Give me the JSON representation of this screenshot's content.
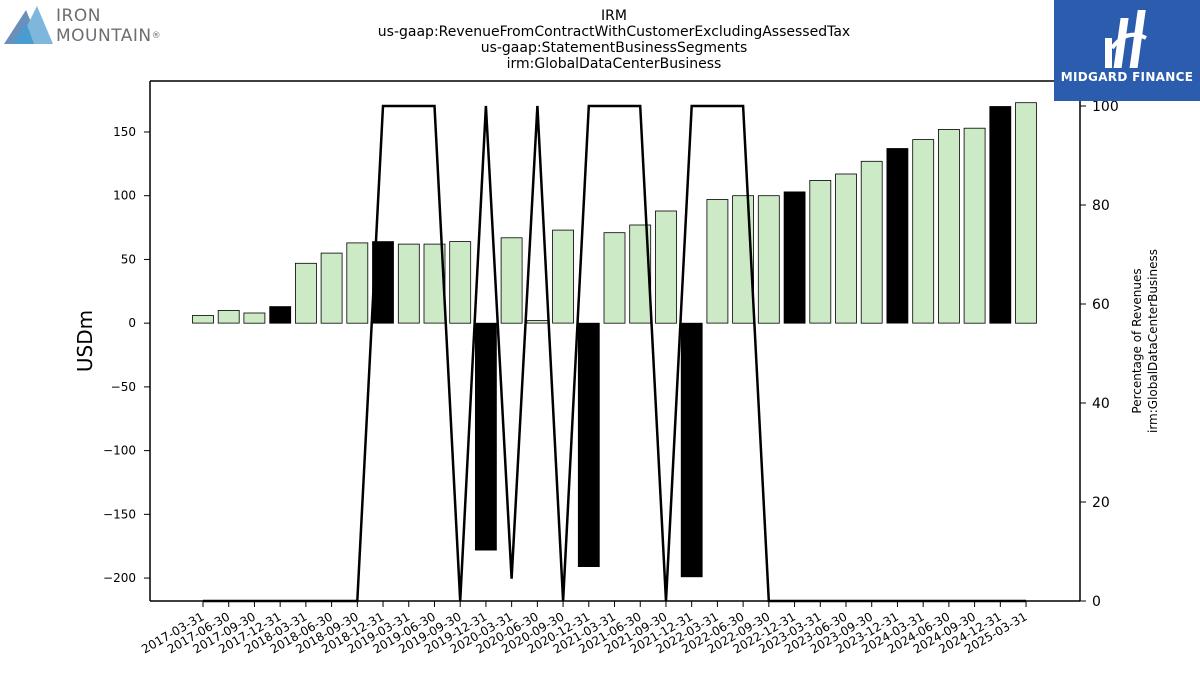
{
  "brand_left": {
    "line1": "IRON",
    "line2": "MOUNTAIN",
    "trademark": "®"
  },
  "brand_right": {
    "name": "MIDGARD FINANCE",
    "color": "#2b5cad"
  },
  "chart_data": {
    "type": "bar",
    "title_lines": [
      "IRM",
      "us-gaap:RevenueFromContractWithCustomerExcludingAssessedTax",
      "us-gaap:StatementBusinessSegments",
      "irm:GlobalDataCenterBusiness"
    ],
    "ylabel": "USDm",
    "y2label_lines": [
      "Percentage of Revenues",
      "irm:GlobalDataCenterBusiness"
    ],
    "ylim": [
      -218,
      190
    ],
    "y2lim": [
      0,
      100
    ],
    "yticks": [
      -200,
      -150,
      -100,
      -50,
      0,
      50,
      100,
      150
    ],
    "y2ticks": [
      0,
      20,
      40,
      60,
      80,
      100
    ],
    "grid": false,
    "categories": [
      "2017-03-31",
      "2017-06-30",
      "2017-09-30",
      "2017-12-31",
      "2018-03-31",
      "2018-06-30",
      "2018-09-30",
      "2018-12-31",
      "2019-03-31",
      "2019-06-30",
      "2019-09-30",
      "2019-12-31",
      "2020-03-31",
      "2020-06-30",
      "2020-09-30",
      "2020-12-31",
      "2021-03-31",
      "2021-06-30",
      "2021-09-30",
      "2021-12-31",
      "2022-03-31",
      "2022-06-30",
      "2022-09-30",
      "2022-12-31",
      "2023-03-31",
      "2023-06-30",
      "2023-09-30",
      "2023-12-31",
      "2024-03-31",
      "2024-06-30",
      "2024-09-30",
      "2024-12-31",
      "2025-03-31"
    ],
    "series": [
      {
        "kind": "bar",
        "values": [
          6,
          10,
          8,
          13,
          47,
          55,
          63,
          64,
          62,
          62,
          64,
          -178,
          67,
          2,
          73,
          -191,
          71,
          77,
          88,
          -199,
          97,
          100,
          100,
          103,
          112,
          117,
          127,
          137,
          144,
          152,
          153,
          170,
          173
        ],
        "quarter_end_year": [
          false,
          false,
          false,
          true,
          false,
          false,
          false,
          true,
          false,
          false,
          false,
          true,
          false,
          false,
          false,
          true,
          false,
          false,
          false,
          true,
          false,
          false,
          false,
          true,
          false,
          false,
          false,
          true,
          false,
          false,
          false,
          true,
          false
        ],
        "color_quarter": "#cdeac6",
        "color_year_end": "#000000"
      },
      {
        "kind": "line",
        "axis": "right",
        "values": [
          0,
          0,
          0,
          0,
          0,
          0,
          0,
          100,
          100,
          100,
          0,
          100,
          4.5,
          100,
          0,
          100,
          100,
          100,
          0,
          100,
          100,
          100,
          0,
          0,
          0,
          0,
          0,
          0,
          0,
          0,
          0,
          0,
          0
        ],
        "color": "#000000"
      }
    ]
  }
}
